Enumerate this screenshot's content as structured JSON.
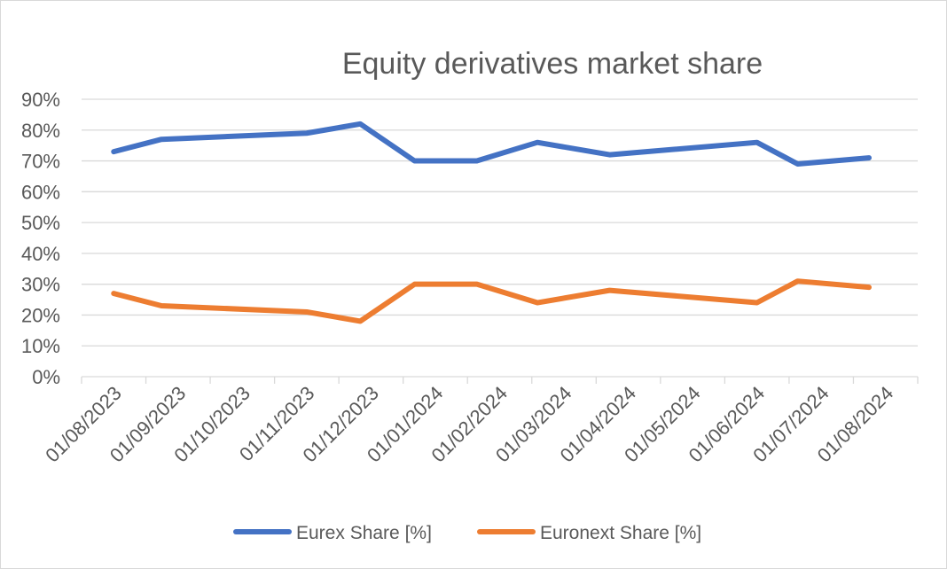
{
  "chart_data": {
    "type": "line",
    "title": "Equity derivatives market share",
    "xlabel": "",
    "ylabel": "",
    "ylim": [
      0,
      90
    ],
    "yticks": [
      "0%",
      "10%",
      "20%",
      "30%",
      "40%",
      "50%",
      "60%",
      "70%",
      "80%",
      "90%"
    ],
    "categories": [
      "01/08/2023",
      "01/09/2023",
      "01/10/2023",
      "01/11/2023",
      "01/12/2023",
      "01/01/2024",
      "01/02/2024",
      "01/03/2024",
      "01/04/2024",
      "01/05/2024",
      "01/06/2024",
      "01/07/2024",
      "01/08/2024"
    ],
    "series": [
      {
        "name": "Eurex Share [%]",
        "color": "#4472c4",
        "points": [
          {
            "date": "2023-08-01",
            "value": 73
          },
          {
            "date": "2023-08-24",
            "value": 77
          },
          {
            "date": "2023-11-01",
            "value": 79
          },
          {
            "date": "2023-11-26",
            "value": 82
          },
          {
            "date": "2023-12-22",
            "value": 70
          },
          {
            "date": "2024-01-21",
            "value": 70
          },
          {
            "date": "2024-02-18",
            "value": 76
          },
          {
            "date": "2024-03-23",
            "value": 72
          },
          {
            "date": "2024-06-01",
            "value": 76
          },
          {
            "date": "2024-06-20",
            "value": 69
          },
          {
            "date": "2024-07-24",
            "value": 71
          }
        ]
      },
      {
        "name": "Euronext Share [%]",
        "color": "#ed7d31",
        "points": [
          {
            "date": "2023-08-01",
            "value": 27
          },
          {
            "date": "2023-08-24",
            "value": 23
          },
          {
            "date": "2023-11-01",
            "value": 21
          },
          {
            "date": "2023-11-26",
            "value": 18
          },
          {
            "date": "2023-12-22",
            "value": 30
          },
          {
            "date": "2024-01-21",
            "value": 30
          },
          {
            "date": "2024-02-18",
            "value": 24
          },
          {
            "date": "2024-03-23",
            "value": 28
          },
          {
            "date": "2024-06-01",
            "value": 24
          },
          {
            "date": "2024-06-20",
            "value": 31
          },
          {
            "date": "2024-07-24",
            "value": 29
          }
        ]
      }
    ],
    "grid": true,
    "legend_position": "bottom"
  }
}
